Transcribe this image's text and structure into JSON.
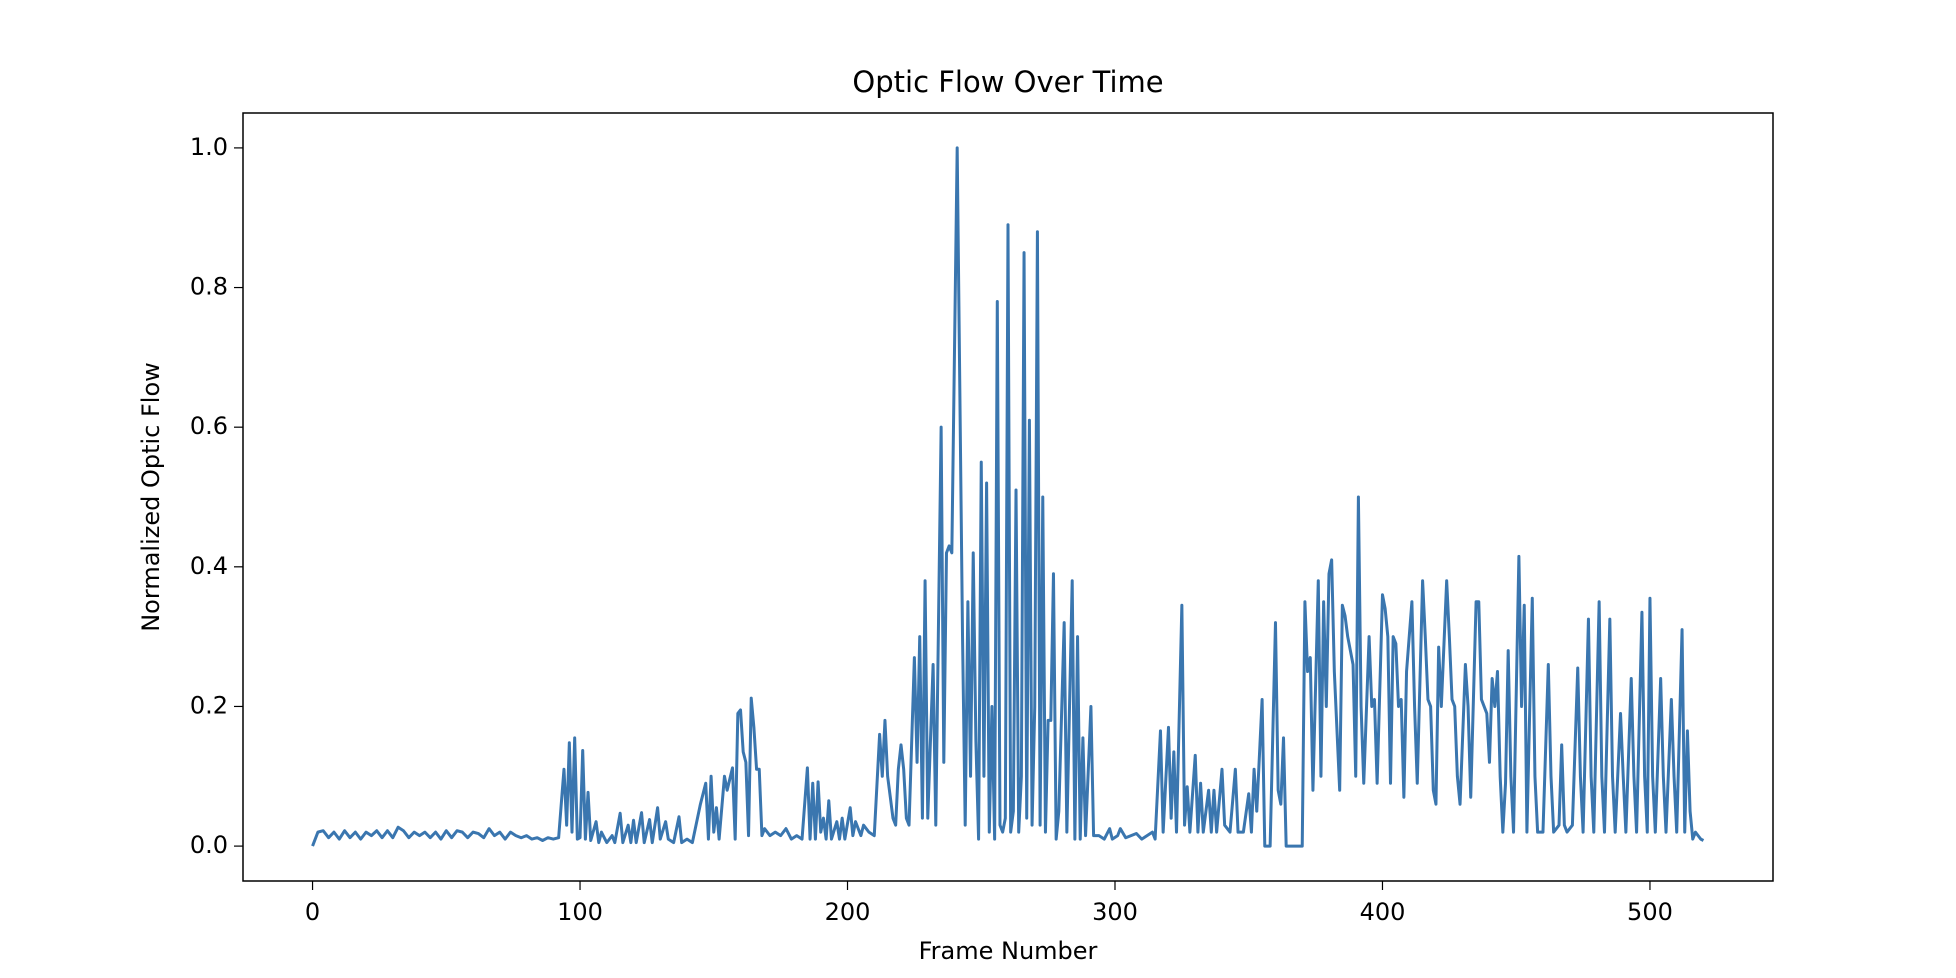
{
  "chart_data": {
    "type": "line",
    "title": "Optic Flow Over Time",
    "x_label": "Frame Number",
    "y_label": "Normalized Optic Flow",
    "color": "#3a76af",
    "x": [
      0,
      2,
      4,
      6,
      8,
      10,
      12,
      14,
      16,
      18,
      20,
      22,
      24,
      26,
      28,
      30,
      32,
      34,
      36,
      38,
      40,
      42,
      44,
      46,
      48,
      50,
      52,
      54,
      56,
      58,
      60,
      62,
      64,
      66,
      68,
      70,
      72,
      74,
      76,
      78,
      80,
      82,
      84,
      86,
      88,
      90,
      92,
      94,
      95,
      96,
      97,
      98,
      99,
      100,
      101,
      102,
      103,
      104,
      106,
      107,
      108,
      110,
      112,
      113,
      115,
      116,
      118,
      119,
      120,
      121,
      123,
      124,
      126,
      127,
      129,
      130,
      132,
      133,
      135,
      137,
      138,
      140,
      142,
      145,
      147,
      148,
      149,
      150,
      151,
      152,
      154,
      155,
      157,
      158,
      159,
      160,
      161,
      162,
      163,
      164,
      165,
      166,
      167,
      168,
      169,
      171,
      173,
      175,
      177,
      179,
      181,
      183,
      185,
      186,
      187,
      188,
      189,
      190,
      191,
      192,
      193,
      194,
      196,
      197,
      198,
      199,
      201,
      202,
      203,
      205,
      206,
      208,
      210,
      212,
      213,
      214,
      215,
      216,
      217,
      218,
      219,
      220,
      221,
      222,
      223,
      225,
      226,
      227,
      228,
      229,
      230,
      232,
      233,
      235,
      236,
      237,
      238,
      239,
      241,
      243,
      244,
      245,
      246,
      247,
      248,
      249,
      250,
      251,
      252,
      253,
      254,
      255,
      256,
      257,
      258,
      259,
      260,
      261,
      262,
      263,
      264,
      265,
      266,
      267,
      268,
      269,
      270,
      271,
      272,
      273,
      274,
      275,
      276,
      277,
      278,
      279,
      281,
      282,
      284,
      285,
      286,
      287,
      288,
      289,
      291,
      292,
      294,
      296,
      298,
      299,
      301,
      302,
      304,
      306,
      308,
      310,
      312,
      314,
      315,
      317,
      318,
      320,
      321,
      322,
      323,
      325,
      326,
      327,
      328,
      330,
      331,
      332,
      333,
      335,
      336,
      337,
      338,
      340,
      341,
      343,
      345,
      346,
      348,
      350,
      351,
      352,
      353,
      355,
      356,
      358,
      360,
      361,
      362,
      363,
      364,
      366,
      370,
      371,
      372,
      373,
      374,
      376,
      377,
      378,
      379,
      380,
      381,
      382,
      384,
      385,
      386,
      387,
      389,
      390,
      391,
      392,
      393,
      395,
      396,
      397,
      398,
      400,
      401,
      402,
      403,
      404,
      405,
      406,
      407,
      408,
      409,
      411,
      412,
      413,
      415,
      416,
      417,
      418,
      419,
      420,
      421,
      422,
      424,
      425,
      426,
      427,
      428,
      429,
      431,
      432,
      433,
      435,
      436,
      437,
      438,
      439,
      440,
      441,
      442,
      443,
      444,
      445,
      446,
      447,
      448,
      449,
      451,
      452,
      453,
      454,
      456,
      457,
      458,
      460,
      462,
      463,
      464,
      466,
      467,
      468,
      469,
      471,
      473,
      474,
      475,
      477,
      478,
      479,
      481,
      482,
      483,
      485,
      486,
      487,
      489,
      490,
      491,
      493,
      494,
      495,
      497,
      498,
      499,
      500,
      501,
      502,
      504,
      505,
      506,
      508,
      509,
      510,
      512,
      513,
      514,
      515,
      516,
      517,
      518,
      519,
      520
    ],
    "values": [
      0,
      0.02,
      0.022,
      0.012,
      0.02,
      0.01,
      0.022,
      0.012,
      0.02,
      0.01,
      0.02,
      0.015,
      0.022,
      0.012,
      0.022,
      0.012,
      0.027,
      0.022,
      0.012,
      0.02,
      0.015,
      0.02,
      0.012,
      0.02,
      0.01,
      0.022,
      0.012,
      0.022,
      0.02,
      0.012,
      0.02,
      0.018,
      0.012,
      0.025,
      0.015,
      0.02,
      0.01,
      0.02,
      0.015,
      0.012,
      0.015,
      0.01,
      0.012,
      0.008,
      0.012,
      0.01,
      0.012,
      0.11,
      0.03,
      0.148,
      0.02,
      0.155,
      0.01,
      0.012,
      0.137,
      0.01,
      0.077,
      0.008,
      0.035,
      0.005,
      0.02,
      0.005,
      0.015,
      0.005,
      0.047,
      0.005,
      0.03,
      0.005,
      0.037,
      0.005,
      0.048,
      0.005,
      0.038,
      0.005,
      0.055,
      0.01,
      0.035,
      0.01,
      0.005,
      0.042,
      0.005,
      0.01,
      0.005,
      0.06,
      0.09,
      0.01,
      0.1,
      0.02,
      0.055,
      0.01,
      0.1,
      0.08,
      0.112,
      0.01,
      0.19,
      0.195,
      0.135,
      0.12,
      0.015,
      0.212,
      0.17,
      0.11,
      0.11,
      0.015,
      0.025,
      0.015,
      0.02,
      0.015,
      0.025,
      0.01,
      0.015,
      0.01,
      0.112,
      0.01,
      0.09,
      0.01,
      0.092,
      0.02,
      0.04,
      0.01,
      0.065,
      0.01,
      0.035,
      0.01,
      0.04,
      0.01,
      0.055,
      0.015,
      0.035,
      0.015,
      0.03,
      0.02,
      0.015,
      0.16,
      0.1,
      0.18,
      0.1,
      0.07,
      0.04,
      0.03,
      0.11,
      0.145,
      0.11,
      0.04,
      0.03,
      0.27,
      0.12,
      0.3,
      0.04,
      0.38,
      0.04,
      0.26,
      0.03,
      0.6,
      0.12,
      0.42,
      0.43,
      0.42,
      1.0,
      0.3,
      0.03,
      0.35,
      0.1,
      0.42,
      0.15,
      0.01,
      0.55,
      0.1,
      0.52,
      0.02,
      0.2,
      0.01,
      0.78,
      0.03,
      0.02,
      0.04,
      0.89,
      0.02,
      0.05,
      0.51,
      0.02,
      0.1,
      0.85,
      0.04,
      0.61,
      0.03,
      0.2,
      0.88,
      0.03,
      0.5,
      0.02,
      0.18,
      0.18,
      0.39,
      0.01,
      0.05,
      0.32,
      0.02,
      0.38,
      0.01,
      0.3,
      0.01,
      0.155,
      0.015,
      0.2,
      0.015,
      0.015,
      0.01,
      0.025,
      0.01,
      0.015,
      0.025,
      0.012,
      0.015,
      0.018,
      0.01,
      0.015,
      0.02,
      0.01,
      0.165,
      0.02,
      0.17,
      0.04,
      0.135,
      0.02,
      0.345,
      0.03,
      0.085,
      0.02,
      0.13,
      0.02,
      0.09,
      0.02,
      0.08,
      0.02,
      0.08,
      0.02,
      0.11,
      0.03,
      0.02,
      0.11,
      0.02,
      0.02,
      0.075,
      0.02,
      0.11,
      0.05,
      0.21,
      0.0,
      0.0,
      0.32,
      0.08,
      0.06,
      0.155,
      0.0,
      0.0,
      0.0,
      0.35,
      0.25,
      0.27,
      0.08,
      0.38,
      0.1,
      0.35,
      0.2,
      0.39,
      0.41,
      0.25,
      0.08,
      0.345,
      0.33,
      0.3,
      0.26,
      0.1,
      0.5,
      0.2,
      0.09,
      0.3,
      0.2,
      0.21,
      0.09,
      0.36,
      0.34,
      0.3,
      0.09,
      0.3,
      0.29,
      0.2,
      0.21,
      0.07,
      0.25,
      0.35,
      0.2,
      0.09,
      0.38,
      0.3,
      0.21,
      0.2,
      0.08,
      0.06,
      0.285,
      0.2,
      0.38,
      0.3,
      0.21,
      0.2,
      0.1,
      0.06,
      0.26,
      0.2,
      0.07,
      0.35,
      0.35,
      0.21,
      0.2,
      0.19,
      0.12,
      0.24,
      0.2,
      0.25,
      0.1,
      0.02,
      0.09,
      0.28,
      0.1,
      0.02,
      0.415,
      0.2,
      0.345,
      0.02,
      0.355,
      0.1,
      0.02,
      0.02,
      0.26,
      0.1,
      0.02,
      0.03,
      0.145,
      0.03,
      0.02,
      0.03,
      0.255,
      0.1,
      0.02,
      0.325,
      0.1,
      0.02,
      0.35,
      0.1,
      0.02,
      0.325,
      0.1,
      0.02,
      0.19,
      0.1,
      0.02,
      0.24,
      0.1,
      0.02,
      0.335,
      0.1,
      0.02,
      0.355,
      0.1,
      0.02,
      0.24,
      0.1,
      0.02,
      0.21,
      0.1,
      0.02,
      0.31,
      0.02,
      0.165,
      0.05,
      0.01,
      0.02,
      0.015,
      0.01,
      0.008
    ],
    "xlim": [
      -26,
      546
    ],
    "ylim": [
      -0.05,
      1.05
    ],
    "xticks": [
      0,
      100,
      200,
      300,
      400,
      500
    ],
    "yticks": [
      {
        "value": 0,
        "label": "0.0"
      },
      {
        "value": 0.2,
        "label": "0.2"
      },
      {
        "value": 0.4,
        "label": "0.4"
      },
      {
        "value": 0.6,
        "label": "0.6"
      },
      {
        "value": 0.8,
        "label": "0.8"
      },
      {
        "value": 1.0,
        "label": "1.0"
      }
    ]
  }
}
